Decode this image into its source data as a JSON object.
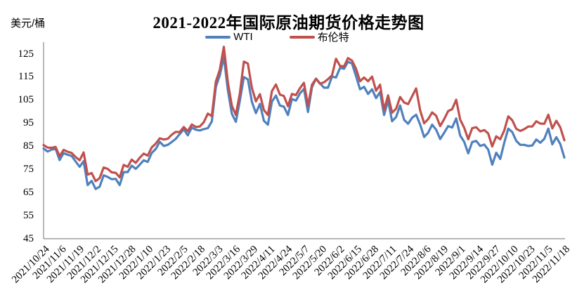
{
  "header": {
    "title": "2021-2022年国际原油期货价格走势图",
    "y_axis_unit": "美元/桶"
  },
  "legend": [
    {
      "label": "WTI",
      "color": "#4F81BD"
    },
    {
      "label": "布伦特",
      "color": "#C0504D"
    }
  ],
  "chart_data": {
    "type": "line",
    "title": "2021-2022年国际原油期货价格走势图",
    "ylabel": "美元/桶",
    "ylim": [
      45,
      130
    ],
    "yticks": [
      45,
      55,
      65,
      75,
      85,
      95,
      105,
      115,
      125
    ],
    "grid": false,
    "legend_position": "top-center",
    "x_start": "2021/10/24",
    "x_end": "2022/11/18",
    "x_note": "daily price series shown; values below sampled every 3 days from 2021/10/24 to 2022/11/18",
    "x_tick_labels": [
      "2021/10/24",
      "2021/11/6",
      "2021/11/19",
      "2021/12/2",
      "2021/12/15",
      "2021/12/28",
      "2022/1/10",
      "2022/1/23",
      "2022/2/5",
      "2022/2/18",
      "2022/3/3",
      "2022/3/16",
      "2022/3/29",
      "2022/4/11",
      "2022/4/24",
      "2022/5/7",
      "2022/5/20",
      "2022/6/2",
      "2022/6/15",
      "2022/6/28",
      "2022/7/11",
      "2022/7/24",
      "2022/8/6",
      "2022/8/19",
      "2022/9/1",
      "2022/9/14",
      "2022/9/27",
      "2022/10/10",
      "2022/10/23",
      "2022/11/5",
      "2022/11/18"
    ],
    "series": [
      {
        "name": "WTI",
        "color": "#4F81BD",
        "values": [
          84.0,
          82.7,
          83.5,
          83.9,
          79.0,
          82.0,
          81.3,
          80.8,
          78.4,
          76.1,
          78.5,
          68.2,
          70.0,
          66.5,
          67.5,
          72.4,
          71.7,
          70.7,
          70.9,
          68.2,
          73.8,
          73.8,
          76.6,
          75.2,
          77.0,
          78.9,
          78.2,
          82.1,
          83.8,
          86.9,
          85.1,
          85.6,
          86.8,
          88.2,
          90.3,
          92.3,
          89.7,
          93.1,
          92.1,
          91.8,
          92.4,
          92.8,
          95.7,
          110.6,
          115.7,
          123.7,
          109.3,
          99.0,
          95.5,
          104.7,
          114.9,
          113.9,
          104.2,
          99.3,
          103.3,
          96.0,
          94.3,
          104.3,
          106.9,
          102.6,
          102.1,
          98.5,
          105.4,
          104.7,
          107.8,
          109.8,
          99.8,
          110.5,
          114.2,
          112.2,
          110.3,
          110.3,
          115.1,
          114.7,
          118.9,
          118.5,
          121.5,
          120.7,
          115.3,
          109.6,
          110.7,
          107.6,
          109.6,
          105.8,
          108.4,
          98.5,
          104.8,
          95.8,
          97.6,
          102.6,
          96.4,
          94.7,
          97.3,
          98.6,
          94.4,
          89.0,
          90.8,
          94.3,
          92.1,
          88.1,
          90.8,
          93.7,
          93.1,
          97.0,
          89.6,
          86.9,
          81.9,
          86.8,
          87.3,
          85.1,
          85.7,
          83.5,
          77.0,
          82.2,
          79.5,
          86.5,
          92.6,
          91.1,
          87.3,
          85.6,
          85.6,
          85.1,
          85.3,
          87.9,
          86.5,
          88.2,
          92.6,
          85.8,
          88.9,
          85.9,
          80.1
        ]
      },
      {
        "name": "布伦特",
        "color": "#C0504D",
        "values": [
          85.5,
          84.4,
          84.3,
          84.7,
          80.7,
          83.4,
          82.6,
          82.1,
          80.3,
          78.9,
          82.3,
          72.7,
          73.4,
          69.9,
          71.2,
          75.8,
          75.2,
          73.7,
          73.5,
          71.5,
          76.9,
          76.1,
          79.2,
          77.8,
          80.0,
          81.8,
          80.9,
          84.5,
          86.1,
          88.4,
          87.9,
          88.2,
          90.0,
          91.2,
          91.1,
          93.3,
          91.5,
          94.4,
          93.3,
          93.5,
          95.4,
          99.1,
          98.0,
          112.9,
          118.1,
          128.0,
          112.7,
          102.5,
          98.5,
          107.9,
          121.6,
          120.7,
          110.2,
          104.4,
          107.5,
          100.6,
          98.5,
          108.8,
          111.7,
          107.3,
          106.7,
          102.3,
          107.6,
          107.1,
          110.1,
          112.4,
          102.5,
          111.6,
          114.2,
          112.0,
          112.6,
          114.0,
          115.6,
          122.8,
          119.7,
          119.5,
          123.1,
          122.0,
          118.5,
          113.1,
          114.7,
          113.1,
          115.1,
          109.0,
          111.6,
          100.7,
          107.0,
          99.5,
          101.2,
          106.3,
          103.9,
          103.2,
          106.6,
          110.0,
          100.5,
          94.9,
          96.7,
          99.6,
          98.2,
          93.7,
          96.7,
          100.2,
          101.0,
          105.1,
          96.5,
          93.0,
          88.0,
          92.8,
          93.2,
          91.4,
          92.0,
          90.5,
          84.9,
          89.3,
          88.0,
          91.8,
          97.9,
          96.2,
          92.5,
          91.6,
          92.4,
          93.5,
          93.5,
          95.8,
          94.8,
          94.7,
          98.6,
          92.7,
          96.0,
          93.1,
          87.6
        ]
      }
    ]
  }
}
